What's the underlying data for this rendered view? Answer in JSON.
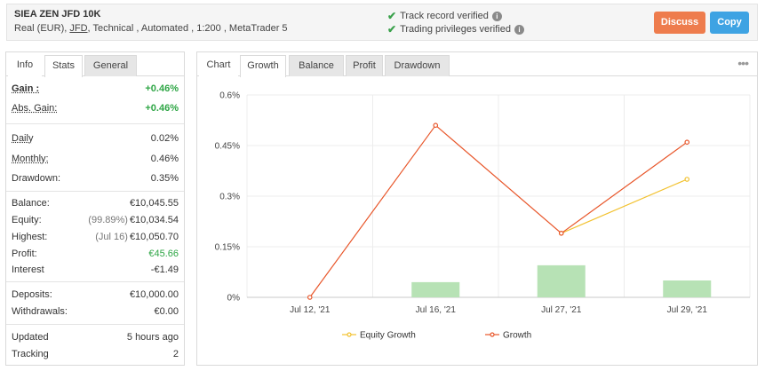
{
  "account": {
    "name": "SIEA ZEN JFD 10K",
    "meta_prefix": "Real (EUR),",
    "broker": "JFD",
    "meta_suffix": ", Technical , Automated , 1:200 , MetaTrader 5"
  },
  "verification": {
    "track_record": "Track record verified",
    "trading_privileges": "Trading privileges verified"
  },
  "actions": {
    "discuss": "Discuss",
    "copy": "Copy"
  },
  "stats_tabs": {
    "info": "Info",
    "stats": "Stats",
    "general": "General"
  },
  "stats": {
    "gain": {
      "label": "Gain :",
      "value": "+0.46%"
    },
    "abs_gain": {
      "label": "Abs. Gain:",
      "value": "+0.46%"
    },
    "daily": {
      "label": "Daily",
      "value": "0.02%"
    },
    "monthly": {
      "label": "Monthly:",
      "value": "0.46%"
    },
    "drawdown": {
      "label": "Drawdown:",
      "value": "0.35%"
    },
    "balance": {
      "label": "Balance:",
      "value": "€10,045.55"
    },
    "equity": {
      "label": "Equity:",
      "pre": "(99.89%)",
      "value": "€10,034.54"
    },
    "highest": {
      "label": "Highest:",
      "pre": "(Jul 16)",
      "value": "€10,050.70"
    },
    "profit": {
      "label": "Profit:",
      "value": "€45.66"
    },
    "interest": {
      "label": "Interest",
      "value": "-€1.49"
    },
    "deposits": {
      "label": "Deposits:",
      "value": "€10,000.00"
    },
    "withdrawals": {
      "label": "Withdrawals:",
      "value": "€0.00"
    },
    "updated": {
      "label": "Updated",
      "value": "5 hours ago"
    },
    "tracking": {
      "label": "Tracking",
      "value": "2"
    }
  },
  "chart_tabs": {
    "chart": "Chart",
    "growth": "Growth",
    "balance": "Balance",
    "profit": "Profit",
    "drawdown": "Drawdown"
  },
  "colors": {
    "growth": "#e8562a",
    "equity": "#f2c12e",
    "bars": "#b7e2b5",
    "gain_green": "#2fa646",
    "discuss": "#ee7c4d",
    "copy": "#3ea3e3"
  },
  "chart_data": {
    "type": "line",
    "categories": [
      "Jul 12, '21",
      "Jul 16, '21",
      "Jul 27, '21",
      "Jul 29, '21"
    ],
    "y_ticks": [
      "0%",
      "0.15%",
      "0.3%",
      "0.45%",
      "0.6%"
    ],
    "ylim": [
      0,
      0.6
    ],
    "series": [
      {
        "name": "Equity Growth",
        "type": "line",
        "values": [
          null,
          null,
          0.19,
          0.35
        ]
      },
      {
        "name": "Growth",
        "type": "line",
        "values": [
          0,
          0.51,
          0.19,
          0.46
        ]
      },
      {
        "type": "bar",
        "values": [
          0,
          0.045,
          0.095,
          0.05
        ]
      }
    ],
    "legend": "bottom",
    "grid": true
  }
}
